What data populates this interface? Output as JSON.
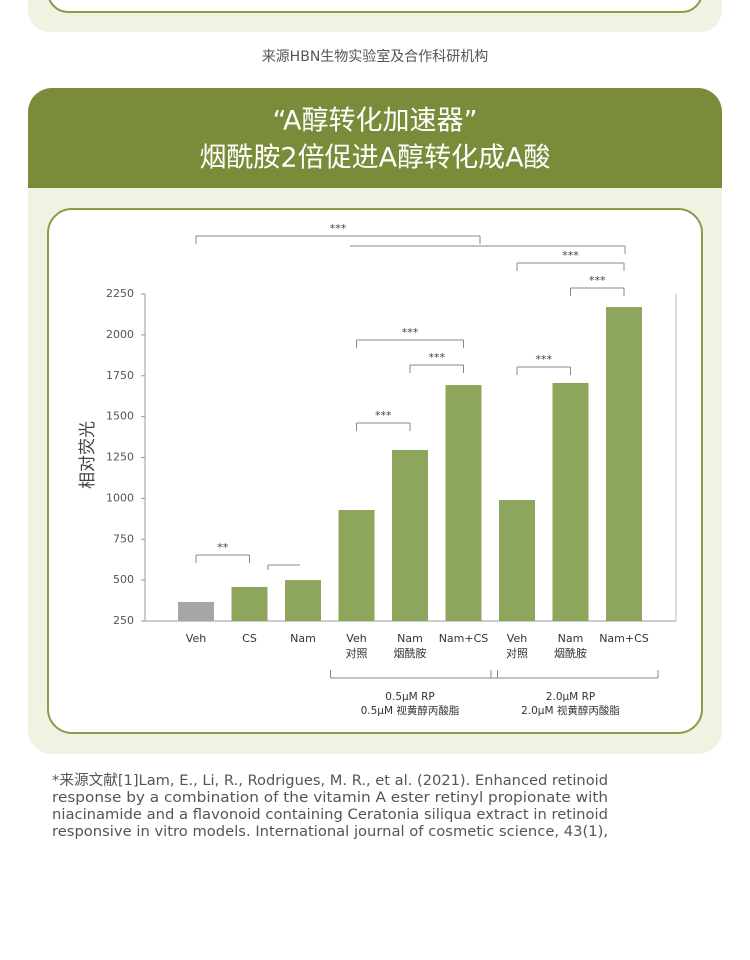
{
  "top_note": "来源HBN生物实验室及合作科研机构",
  "panel": {
    "title_lines": [
      "“A醇转化加速器”",
      "烟酰胺2倍促进A醇转化成A酸"
    ]
  },
  "chart_data": {
    "type": "bar",
    "y_label": "相对荧光",
    "categories": [
      "Veh",
      "CS",
      "Nam",
      "Veh\n对照",
      "Nam\n烟酰胺",
      "Nam+CS",
      "Veh\n对照",
      "Nam\n烟酰胺",
      "Nam+CS"
    ],
    "values": [
      366,
      458,
      500,
      929,
      1296,
      1693,
      990,
      1706,
      2170
    ],
    "colors": [
      "#a6a6a6",
      "#8da65c",
      "#8da65c",
      "#8da65c",
      "#8da65c",
      "#8da65c",
      "#8da65c",
      "#8da65c",
      "#8da65c"
    ],
    "ylim": [
      250,
      2250
    ],
    "yticks": [
      250,
      500,
      750,
      1000,
      1250,
      1500,
      1750,
      2000,
      2250
    ],
    "groups": [
      {
        "label": "0.5μM RP\n0.5μM 视黄醇丙酸脂",
        "from": 3,
        "to": 5
      },
      {
        "label": "2.0μM RP\n2.0μM 视黄醇丙酸脂",
        "from": 6,
        "to": 8
      }
    ],
    "annotations": [
      {
        "label": "**",
        "from": 0,
        "to": 1
      },
      {
        "label": "***",
        "from": 0,
        "to": 5
      },
      {
        "label": "***",
        "from": 3,
        "to": 5
      },
      {
        "label": "***",
        "from": 4,
        "to": 5
      },
      {
        "label": "***",
        "from": 3,
        "to": 4
      },
      {
        "label": "***",
        "from": 6,
        "to": 8
      },
      {
        "label": "***",
        "from": 7,
        "to": 8
      },
      {
        "label": "***",
        "from": 6,
        "to": 7
      }
    ]
  },
  "reference": {
    "lines": [
      "*来源文献[1]Lam, E., Li, R., Rodrigues, M. R., et al. (2021). Enhanced retinoid",
      "response by a combination of the vitamin A ester retinyl propionate with",
      "niacinamide and a flavonoid containing Ceratonia siliqua extract in retinoid",
      "responsive in vitro models. International journal of cosmetic science, 43(1),"
    ]
  }
}
